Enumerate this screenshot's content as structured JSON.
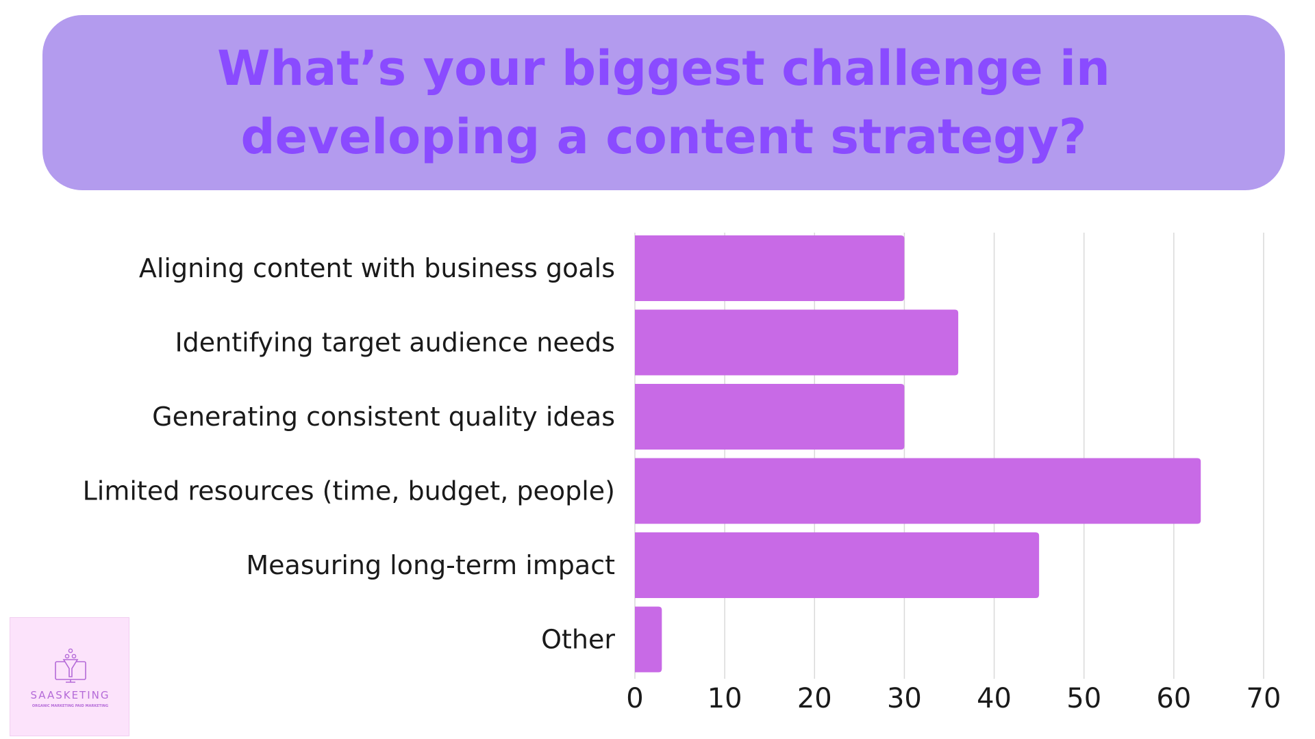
{
  "header": {
    "title": "What’s your biggest challenge in developing a content strategy?"
  },
  "colors": {
    "banner_background": "#b39bee",
    "title_text": "#8a4bff",
    "bar_fill": "#c86ae6",
    "grid_line": "#d9d9d9",
    "logo_background": "#fce3fb",
    "logo_text": "#b46ad8"
  },
  "chart_data": {
    "type": "bar",
    "orientation": "horizontal",
    "categories": [
      "Aligning content with business goals",
      "Identifying target audience needs",
      "Generating consistent quality ideas",
      "Limited resources (time, budget, people)",
      "Measuring long-term impact",
      "Other"
    ],
    "values": [
      30,
      36,
      30,
      63,
      45,
      3
    ],
    "xlim": [
      0,
      70
    ],
    "x_ticks": [
      0,
      10,
      20,
      30,
      40,
      50,
      60,
      70
    ],
    "xlabel": "",
    "ylabel": "",
    "grid": "vertical",
    "legend": "none"
  },
  "logo": {
    "name": "SAASKETING",
    "tagline": "ORGANIC MARKETING  PAID MARKETING",
    "icon": "funnel-monitor-icon"
  }
}
